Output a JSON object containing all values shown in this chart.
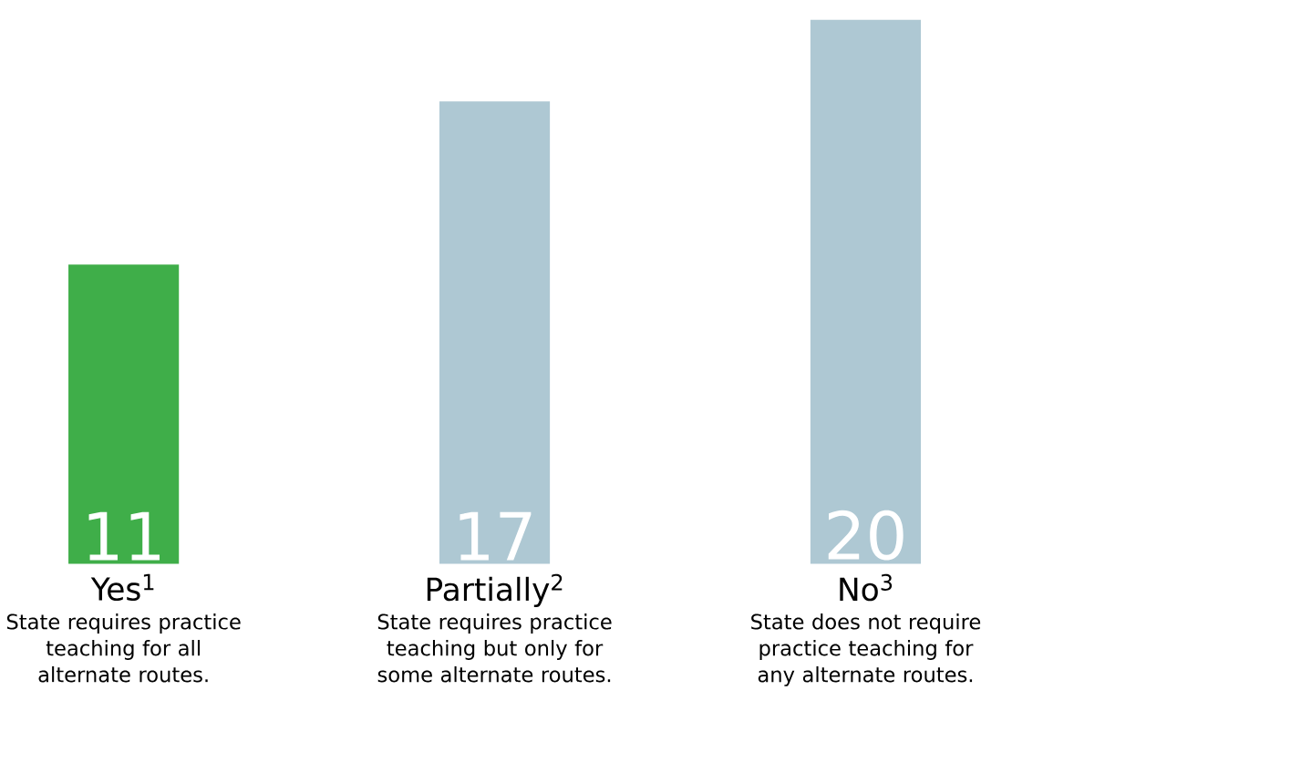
{
  "chart_data": {
    "type": "bar",
    "categories": [
      "Yes$^{1}$",
      "Partially$^{2}$",
      "No$^{3}$"
    ],
    "values": [
      11,
      17,
      20
    ],
    "colors": [
      "#3fae49",
      "#aec8d3",
      "#aec8d3"
    ],
    "data_labels": true,
    "annotations": [
      "State requires practice teaching for all alternate routes.",
      "State requires practice teaching but only for some alternate routes.",
      "State does not require practice teaching for any alternate routes."
    ]
  }
}
